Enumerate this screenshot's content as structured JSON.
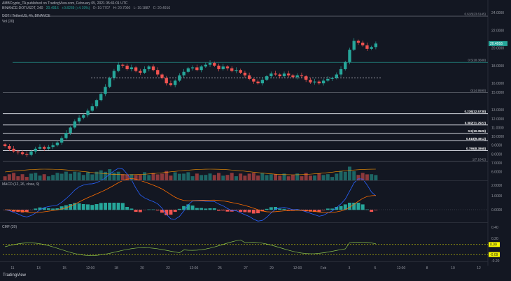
{
  "header": {
    "publish_line": "AMBCrypto_TA published on TradingView.com, February 05, 2021 05:41:01 UTC",
    "pair": "BINANCE:DOTUSDT, 240",
    "last": "20.4916",
    "change": "+0.8239 (+4.19%)",
    "o": "O: 19.7707",
    "h": "H: 20.7000",
    "l": "L: 19.1887",
    "c": "C: 20.4916",
    "legend_title": "DOT / TetherUS, 4h, BINANCE",
    "vol_label": "Vol (20)",
    "macd_label": "MACD (12, 26, close, 9)",
    "cmf_label": "CMF (20)"
  },
  "price_axis": [
    "24.0000",
    "22.0000",
    "20.0000",
    "18.0000",
    "16.0000",
    "15.0000",
    "13.0000",
    "12.0000",
    "11.0000",
    "10.0000",
    "9.0000",
    "8.0000",
    "7.0000",
    "6.0000"
  ],
  "fib_levels": [
    {
      "label": "0.618(23.6145)",
      "value": 23.6
    },
    {
      "label": "0.5(18.3688)",
      "value": 18.37
    },
    {
      "label": "0(14.9590)",
      "value": 14.96
    },
    {
      "label": "0.236(12.5738)",
      "value": 12.57
    },
    {
      "label": "0.382(11.2922)",
      "value": 11.29
    },
    {
      "label": "0.5(10.3526)",
      "value": 10.35
    },
    {
      "label": "0.618(9.4913)",
      "value": 9.49
    },
    {
      "label": "0.786(8.3868)",
      "value": 8.39
    },
    {
      "label": "1(7.1642)",
      "value": 7.16
    }
  ],
  "price_badges": [
    {
      "text": "20.4916",
      "color": "#26a69a"
    }
  ],
  "macd_axis": [
    "2.0000",
    "1.0000",
    "0.0000"
  ],
  "cmf_axis": [
    "0.40",
    "0.20",
    "-0.20"
  ],
  "cmf_badges": [
    {
      "text": "0.09",
      "color": "#f7f700"
    },
    {
      "text": "-0.09",
      "color": "#f7f700"
    }
  ],
  "time_axis": [
    "11",
    "13",
    "15",
    "12:00",
    "18",
    "20",
    "22",
    "12:00",
    "25",
    "27",
    "29",
    "12:00",
    "Feb",
    "3",
    "5",
    "12:00",
    "8",
    "10",
    "12"
  ],
  "footer": {
    "logo": "TradingView"
  },
  "chart_data": {
    "type": "candlestick",
    "symbol": "DOTUSDT",
    "timeframe": "4h",
    "exchange": "BINANCE",
    "ylim": [
      5.5,
      24
    ],
    "x": [
      "11",
      "13",
      "15",
      "12:00",
      "18",
      "20",
      "22",
      "12:00",
      "25",
      "27",
      "29",
      "12:00",
      "Feb",
      "3",
      "5"
    ],
    "close_series": [
      8.9,
      8.6,
      8.3,
      8.2,
      8.0,
      7.9,
      8.3,
      8.6,
      8.8,
      8.6,
      8.8,
      9.0,
      9.3,
      9.8,
      10.4,
      11.0,
      11.7,
      12.1,
      12.4,
      12.9,
      13.4,
      14.1,
      14.8,
      15.6,
      16.6,
      17.4,
      18.1,
      18.0,
      17.6,
      17.8,
      17.4,
      17.2,
      17.6,
      17.9,
      17.5,
      17.0,
      16.6,
      16.0,
      15.8,
      16.3,
      16.9,
      17.3,
      17.7,
      17.8,
      17.5,
      17.9,
      18.1,
      18.3,
      18.0,
      17.6,
      17.9,
      17.7,
      17.4,
      17.5,
      17.2,
      16.9,
      16.5,
      16.2,
      16.0,
      16.4,
      16.8,
      17.1,
      17.0,
      16.8,
      17.1,
      16.9,
      16.7,
      16.9,
      16.8,
      16.4,
      16.1,
      16.2,
      16.0,
      16.3,
      16.5,
      16.6,
      17.0,
      17.6,
      18.4,
      19.8,
      20.8,
      20.6,
      20.3,
      19.9,
      20.1,
      20.5
    ]
  }
}
